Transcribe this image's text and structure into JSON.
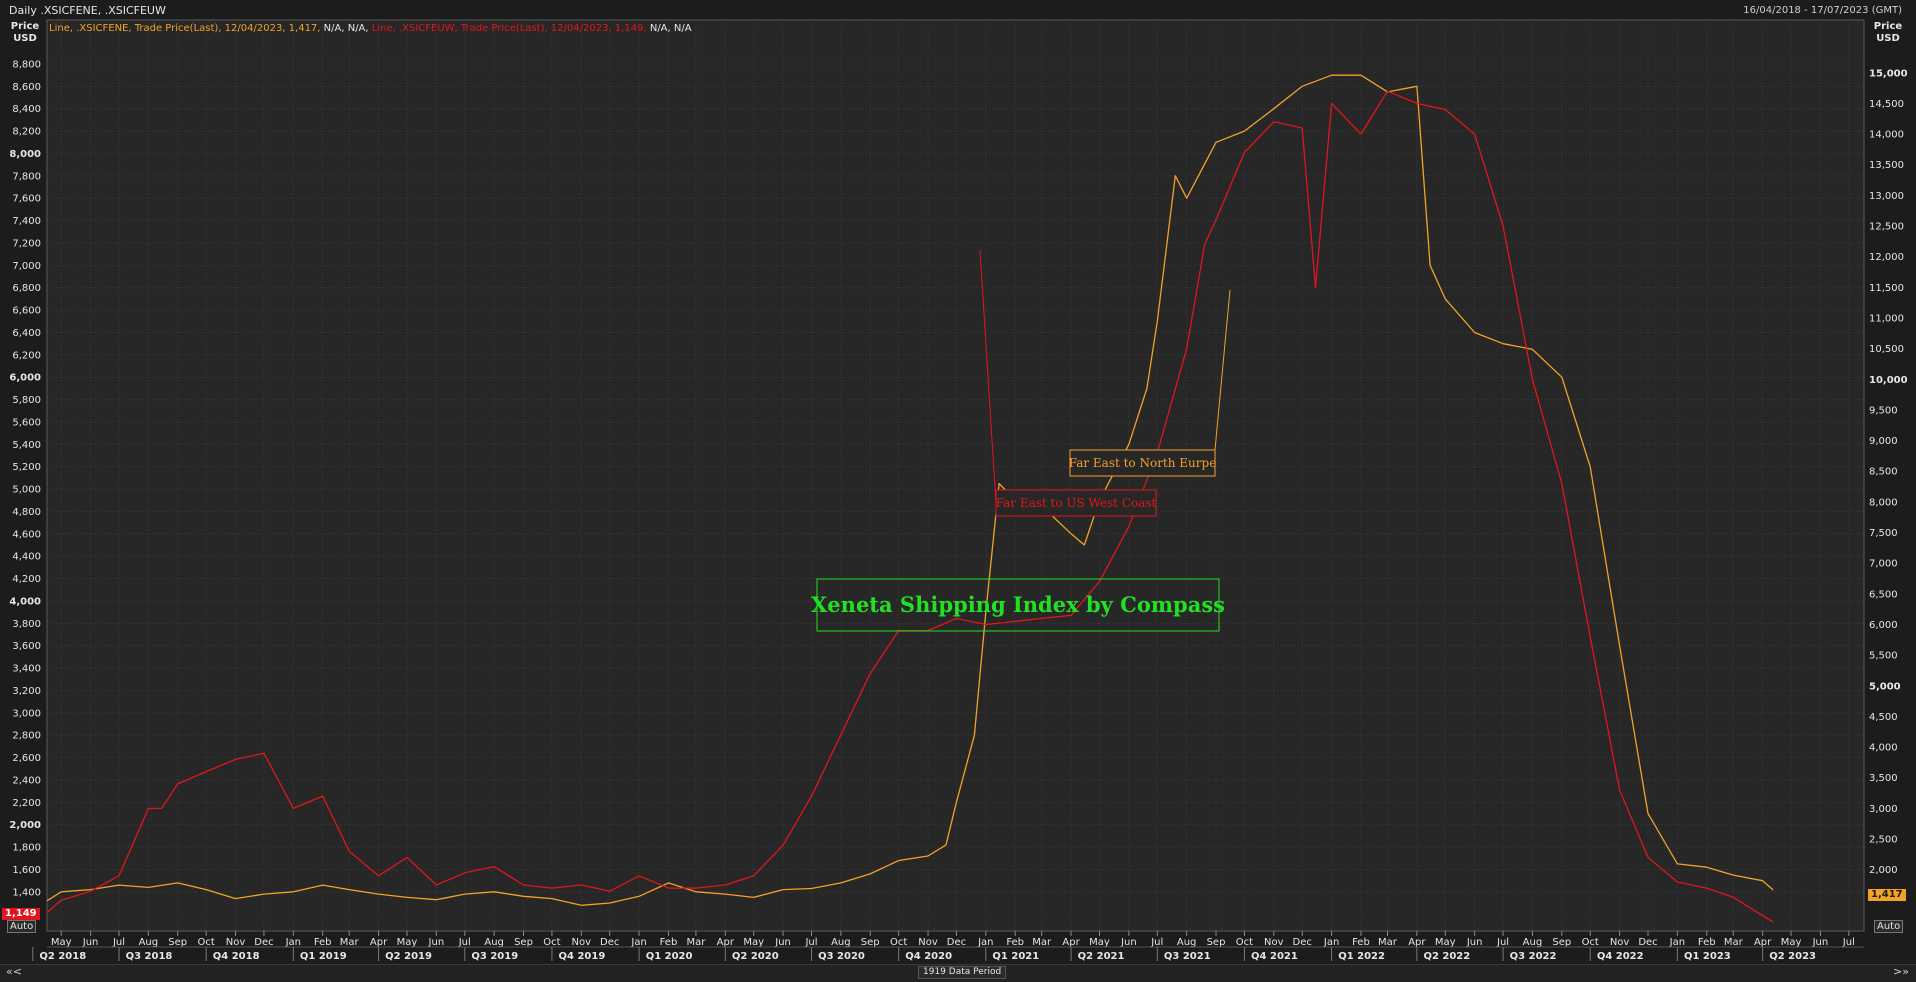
{
  "header": {
    "title": "Daily .XSICFENE, .XSICFEUW",
    "date_range": "16/04/2018 - 17/07/2023 (GMT)"
  },
  "legend": {
    "series1_text": "Line, .XSICFENE, Trade Price(Last), 12/04/2023, 1,417,",
    "series1_na": " N/A, N/A,",
    "series2_text": " Line, .XSICFEUW, Trade Price(Last), 12/04/2023, 1,149,",
    "series2_na": " N/A, N/A"
  },
  "axes": {
    "left_title_line1": "Price",
    "left_title_line2": "USD",
    "right_title_line1": "Price",
    "right_title_line2": "USD"
  },
  "price_tags": {
    "left": "1,149",
    "right": "1,417"
  },
  "controls": {
    "auto_left": "Auto",
    "auto_right": "Auto",
    "period": "1919 Data Period",
    "nav_left": "«<",
    "nav_right": ">»"
  },
  "colors": {
    "background": "#1c1c1c",
    "plot_bg": "#272727",
    "grid": "#3b3b3b",
    "north_europe": "#f2a227",
    "us_west_coast": "#e0161c",
    "watermark": "#22e022"
  },
  "chart_data": {
    "type": "line",
    "title": "Xeneta Shipping Index by Compass",
    "x_range": [
      "2018-04-16",
      "2023-07-17"
    ],
    "left_axis": {
      "ylim": [
        1050,
        9050
      ],
      "ticks": [
        1400,
        1600,
        1800,
        2000,
        2200,
        2400,
        2600,
        2800,
        3000,
        3200,
        3400,
        3600,
        3800,
        4000,
        4200,
        4400,
        4600,
        4800,
        5000,
        5200,
        5400,
        5600,
        5800,
        6000,
        6200,
        6400,
        6600,
        6800,
        7000,
        7200,
        7400,
        7600,
        7800,
        8000,
        8200,
        8400,
        8600,
        8800
      ],
      "tick_labels": [
        "1,400",
        "1,600",
        "1,800",
        "2,000",
        "2,200",
        "2,400",
        "2,600",
        "2,800",
        "3,000",
        "3,200",
        "3,400",
        "3,600",
        "3,800",
        "4,000",
        "4,200",
        "4,400",
        "4,600",
        "4,800",
        "5,000",
        "5,200",
        "5,400",
        "5,600",
        "5,800",
        "6,000",
        "6,200",
        "6,400",
        "6,600",
        "6,800",
        "7,000",
        "7,200",
        "7,400",
        "7,600",
        "7,800",
        "8,000",
        "8,200",
        "8,400",
        "8,600",
        "8,800"
      ]
    },
    "right_axis": {
      "ylim": [
        1000,
        15600
      ],
      "ticks": [
        2000,
        2500,
        3000,
        3500,
        4000,
        4500,
        5000,
        5500,
        6000,
        6500,
        7000,
        7500,
        8000,
        8500,
        9000,
        9500,
        10000,
        10500,
        11000,
        11500,
        12000,
        12500,
        13000,
        13500,
        14000,
        14500,
        15000
      ],
      "tick_labels": [
        "2,000",
        "2,500",
        "3,000",
        "3,500",
        "4,000",
        "4,500",
        "5,000",
        "5,500",
        "6,000",
        "6,500",
        "7,000",
        "7,500",
        "8,000",
        "8,500",
        "9,000",
        "9,500",
        "10,000",
        "10,500",
        "11,000",
        "11,500",
        "12,000",
        "12,500",
        "13,000",
        "13,500",
        "14,000",
        "14,500",
        "15,000"
      ]
    },
    "month_labels": [
      "May",
      "Jun",
      "Jul",
      "Aug",
      "Sep",
      "Oct",
      "Nov",
      "Dec",
      "Jan",
      "Feb",
      "Mar",
      "Apr",
      "May",
      "Jun",
      "Jul",
      "Aug",
      "Sep",
      "Oct",
      "Nov",
      "Dec",
      "Jan",
      "Feb",
      "Mar",
      "Apr",
      "May",
      "Jun",
      "Jul",
      "Aug",
      "Sep",
      "Oct",
      "Nov",
      "Dec",
      "Jan",
      "Feb",
      "Mar",
      "Apr",
      "May",
      "Jun",
      "Jul",
      "Aug",
      "Sep",
      "Oct",
      "Nov",
      "Dec",
      "Jan",
      "Feb",
      "Mar",
      "Apr",
      "May",
      "Jun",
      "Jul",
      "Aug",
      "Sep",
      "Oct",
      "Nov",
      "Dec",
      "Jan",
      "Feb",
      "Mar",
      "Apr",
      "May",
      "Jun",
      "Jul"
    ],
    "quarter_labels": [
      "Q2 2018",
      "Q3 2018",
      "Q4 2018",
      "Q1 2019",
      "Q2 2019",
      "Q3 2019",
      "Q4 2019",
      "Q1 2020",
      "Q2 2020",
      "Q3 2020",
      "Q4 2020",
      "Q1 2021",
      "Q2 2021",
      "Q3 2021",
      "Q4 2021",
      "Q1 2022",
      "Q2 2022",
      "Q3 2022",
      "Q4 2022",
      "Q1 2023",
      "Q2 2023"
    ],
    "grid": true,
    "annotations": [
      {
        "text": "Far East to North Eurpe",
        "series": "XSICFENE"
      },
      {
        "text": "Far East to US West Coast",
        "series": "XSICFEUW"
      }
    ],
    "series": [
      {
        "name": ".XSICFENE",
        "axis": "left",
        "x": [
          "2018-04-16",
          "2018-05-01",
          "2018-06-01",
          "2018-07-01",
          "2018-08-01",
          "2018-09-01",
          "2018-10-01",
          "2018-11-01",
          "2018-12-01",
          "2019-01-01",
          "2019-02-01",
          "2019-03-01",
          "2019-04-01",
          "2019-05-01",
          "2019-06-01",
          "2019-07-01",
          "2019-08-01",
          "2019-09-01",
          "2019-10-01",
          "2019-11-01",
          "2019-12-01",
          "2020-01-01",
          "2020-02-01",
          "2020-03-01",
          "2020-04-01",
          "2020-05-01",
          "2020-06-01",
          "2020-07-01",
          "2020-08-01",
          "2020-09-01",
          "2020-10-01",
          "2020-11-01",
          "2020-11-20",
          "2020-12-01",
          "2020-12-20",
          "2021-01-01",
          "2021-01-15",
          "2021-02-01",
          "2021-03-01",
          "2021-04-01",
          "2021-04-15",
          "2021-05-01",
          "2021-06-01",
          "2021-06-20",
          "2021-07-01",
          "2021-07-20",
          "2021-08-01",
          "2021-09-01",
          "2021-10-01",
          "2021-11-01",
          "2021-12-01",
          "2022-01-01",
          "2022-02-01",
          "2022-03-01",
          "2022-04-01",
          "2022-04-15",
          "2022-05-01",
          "2022-06-01",
          "2022-07-01",
          "2022-08-01",
          "2022-09-01",
          "2022-10-01",
          "2022-11-01",
          "2022-12-01",
          "2023-01-01",
          "2023-02-01",
          "2023-03-01",
          "2023-04-01",
          "2023-04-12"
        ],
        "values": [
          1320,
          1400,
          1420,
          1460,
          1440,
          1480,
          1420,
          1340,
          1380,
          1400,
          1460,
          1420,
          1380,
          1350,
          1330,
          1380,
          1400,
          1360,
          1340,
          1280,
          1300,
          1360,
          1480,
          1400,
          1380,
          1350,
          1420,
          1430,
          1480,
          1560,
          1680,
          1720,
          1820,
          2200,
          2800,
          3900,
          5050,
          4900,
          4850,
          4600,
          4500,
          4900,
          5400,
          5900,
          6500,
          7800,
          7600,
          8100,
          8200,
          8400,
          8600,
          8700,
          8700,
          8550,
          8600,
          7000,
          6700,
          6400,
          6300,
          6250,
          6000,
          5200,
          3600,
          2100,
          1650,
          1620,
          1550,
          1500,
          1417
        ]
      },
      {
        "name": ".XSICFEUW",
        "axis": "right",
        "x": [
          "2018-04-16",
          "2018-05-01",
          "2018-06-01",
          "2018-07-01",
          "2018-08-01",
          "2018-08-15",
          "2018-09-01",
          "2018-10-01",
          "2018-11-01",
          "2018-12-01",
          "2019-01-01",
          "2019-02-01",
          "2019-03-01",
          "2019-04-01",
          "2019-05-01",
          "2019-06-01",
          "2019-07-01",
          "2019-08-01",
          "2019-09-01",
          "2019-10-01",
          "2019-11-01",
          "2019-12-01",
          "2020-01-01",
          "2020-02-01",
          "2020-03-01",
          "2020-04-01",
          "2020-05-01",
          "2020-06-01",
          "2020-07-01",
          "2020-08-01",
          "2020-09-01",
          "2020-10-01",
          "2020-11-01",
          "2020-12-01",
          "2021-01-01",
          "2021-02-01",
          "2021-03-01",
          "2021-04-01",
          "2021-05-01",
          "2021-06-01",
          "2021-07-01",
          "2021-08-01",
          "2021-08-20",
          "2021-09-01",
          "2021-10-01",
          "2021-11-01",
          "2021-12-01",
          "2021-12-15",
          "2022-01-01",
          "2022-02-01",
          "2022-03-01",
          "2022-04-01",
          "2022-05-01",
          "2022-06-01",
          "2022-07-01",
          "2022-08-01",
          "2022-09-01",
          "2022-10-01",
          "2022-11-01",
          "2022-12-01",
          "2023-01-01",
          "2023-02-01",
          "2023-03-01",
          "2023-04-01",
          "2023-04-12"
        ],
        "values": [
          1300,
          1500,
          1650,
          1900,
          3000,
          3000,
          3400,
          3600,
          3800,
          3900,
          3000,
          3200,
          2300,
          1900,
          2200,
          1750,
          1950,
          2050,
          1750,
          1700,
          1750,
          1650,
          1900,
          1700,
          1700,
          1750,
          1900,
          2400,
          3200,
          4200,
          5200,
          5900,
          5900,
          6100,
          6000,
          6050,
          6100,
          6150,
          6700,
          7600,
          8800,
          10500,
          12200,
          12600,
          13700,
          14200,
          14100,
          11500,
          14500,
          14000,
          14700,
          14500,
          14400,
          14000,
          12500,
          10000,
          8300,
          5800,
          3300,
          2200,
          1800,
          1700,
          1550,
          1250,
          1149
        ]
      }
    ]
  }
}
